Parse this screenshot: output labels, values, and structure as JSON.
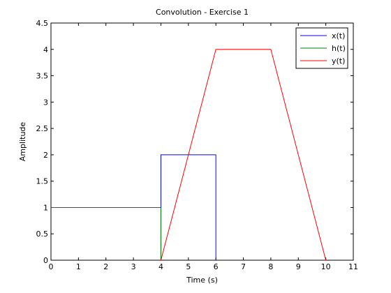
{
  "chart_data": {
    "type": "line",
    "title": "Convolution - Exercise 1",
    "xlabel": "Time (s)",
    "ylabel": "Amplitude",
    "xlim": [
      0,
      11
    ],
    "ylim": [
      0,
      4.5
    ],
    "xticks": [
      0,
      1,
      2,
      3,
      4,
      5,
      6,
      7,
      8,
      9,
      10,
      11
    ],
    "yticks": [
      0,
      0.5,
      1,
      1.5,
      2,
      2.5,
      3,
      3.5,
      4,
      4.5
    ],
    "xtick_labels": [
      "0",
      "1",
      "2",
      "3",
      "4",
      "5",
      "6",
      "7",
      "8",
      "9",
      "10",
      "11"
    ],
    "ytick_labels": [
      "0",
      "0.5",
      "1",
      "1.5",
      "2",
      "2.5",
      "3",
      "3.5",
      "4",
      "4.5"
    ],
    "grid": false,
    "legend_position": "top-right",
    "series": [
      {
        "name": "x(t)",
        "color": "#0000ff",
        "x": [
          4,
          4,
          6,
          6
        ],
        "y": [
          0,
          2,
          2,
          0
        ]
      },
      {
        "name": "h(t)",
        "color": "#008000",
        "x": [
          0,
          4,
          4
        ],
        "y": [
          1,
          1,
          0
        ]
      },
      {
        "name": "y(t)",
        "color": "#ff0000",
        "x": [
          4,
          6,
          8,
          10
        ],
        "y": [
          0,
          4,
          4,
          0
        ]
      }
    ]
  }
}
